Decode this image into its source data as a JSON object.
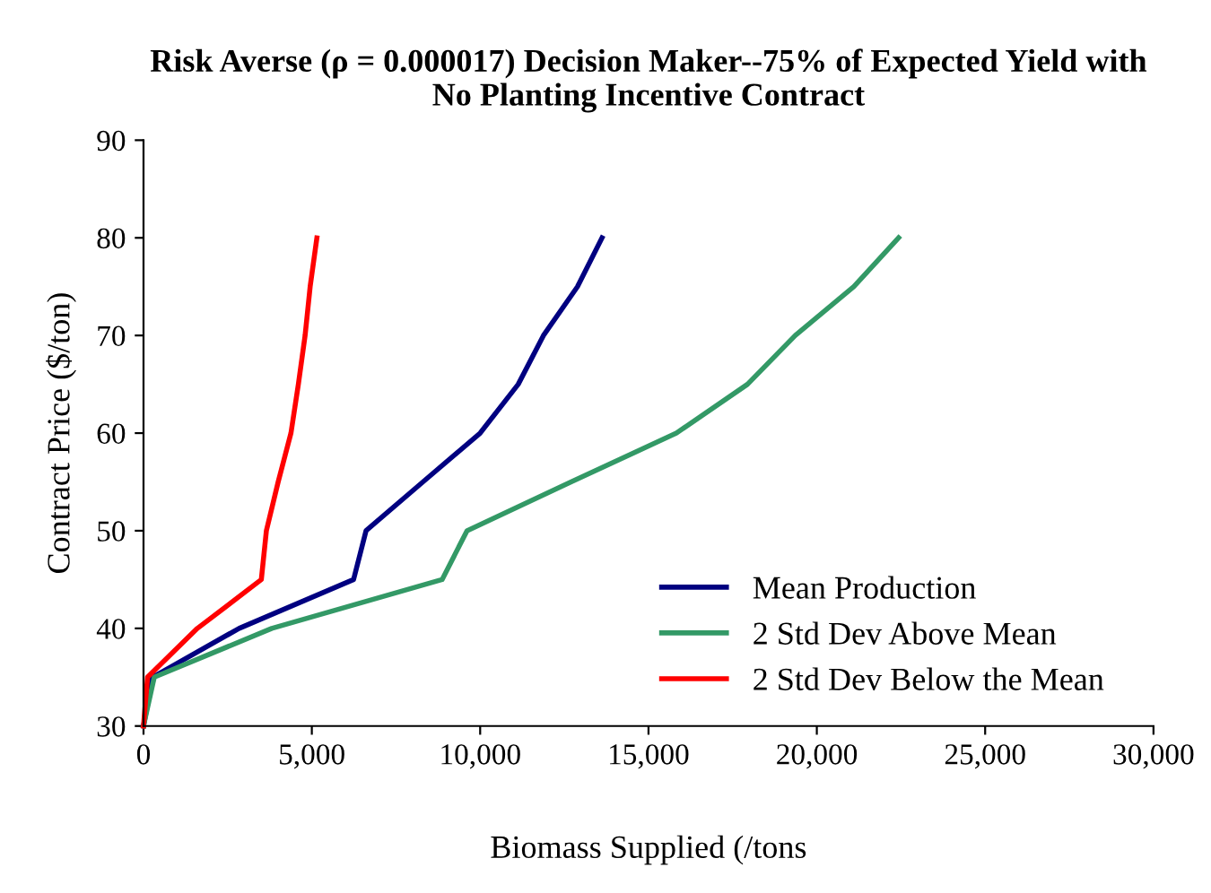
{
  "chart_data": {
    "type": "line",
    "title": "Risk Averse (ρ = 0.000017) Decision Maker--75% of Expected Yield with\nNo Planting Incentive Contract",
    "xlabel": "Biomass Supplied (/tons",
    "ylabel": "Contract Price ($/ton)",
    "series": [
      {
        "name": "Mean Production",
        "color": "#000080",
        "x": [
          0,
          270,
          2840,
          6240,
          6610,
          8300,
          10000,
          11130,
          11880,
          12890,
          13620
        ],
        "values": [
          30,
          35,
          40,
          45,
          50,
          55,
          60,
          65,
          70,
          75,
          80
        ]
      },
      {
        "name": "2 Std Dev Above Mean",
        "color": "#339966",
        "x": [
          0,
          320,
          3810,
          8870,
          9610,
          12700,
          15830,
          17940,
          19360,
          21100,
          22430
        ],
        "values": [
          30,
          35,
          40,
          45,
          50,
          55,
          60,
          65,
          70,
          75,
          80
        ]
      },
      {
        "name": "2 Std Dev Below the Mean",
        "color": "#ff0000",
        "x": [
          0,
          120,
          1600,
          3500,
          3650,
          4000,
          4380,
          4600,
          4800,
          4950,
          5150
        ],
        "values": [
          30,
          35,
          40,
          45,
          50,
          55,
          60,
          65,
          70,
          75,
          80
        ]
      }
    ],
    "xlim": [
      0,
      30000
    ],
    "xticks": [
      {
        "value": 0,
        "label": "0"
      },
      {
        "value": 5000,
        "label": "5,000"
      },
      {
        "value": 10000,
        "label": "10,000"
      },
      {
        "value": 15000,
        "label": "15,000"
      },
      {
        "value": 20000,
        "label": "20,000"
      },
      {
        "value": 25000,
        "label": "25,000"
      },
      {
        "value": 30000,
        "label": "30,000"
      }
    ],
    "ylim": [
      30,
      90
    ],
    "yticks": [
      30,
      40,
      50,
      60,
      70,
      80,
      90
    ],
    "grid": false,
    "legend": "bottom right",
    "marker": "none",
    "line_style": "solid"
  }
}
